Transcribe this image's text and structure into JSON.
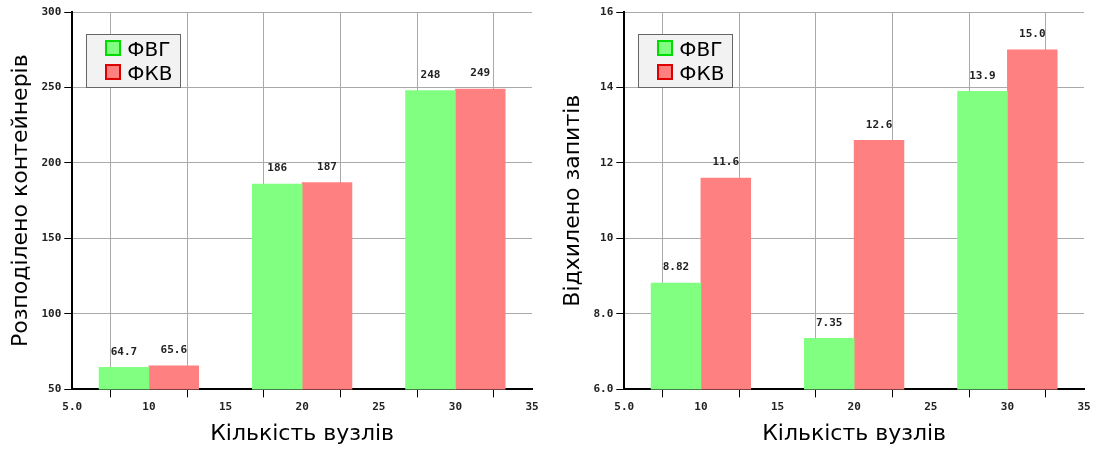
{
  "chart_data": [
    {
      "type": "bar",
      "xlabel": "Кількість вузлів",
      "ylabel": "Розподілено контейнерів",
      "x": [
        10,
        20,
        30
      ],
      "series": [
        {
          "name": "ФВГ",
          "color": "#80ff80",
          "values": [
            64.7,
            186,
            248
          ],
          "value_labels": [
            "64.7",
            "186",
            "248"
          ]
        },
        {
          "name": "ФКВ",
          "color": "#ff8080",
          "values": [
            65.6,
            187,
            249
          ],
          "value_labels": [
            "65.6",
            "187",
            "249"
          ]
        }
      ],
      "xlim": [
        5,
        35
      ],
      "xticks": [
        {
          "value": 5,
          "label": "5.0"
        },
        10,
        15,
        20,
        25,
        30,
        35
      ],
      "ylim": [
        50,
        300
      ],
      "yticks": [
        50,
        100,
        150,
        200,
        250,
        300
      ],
      "grid": true,
      "legend": "top left"
    },
    {
      "type": "bar",
      "xlabel": "Кількість вузлів",
      "ylabel": "Відхилено запитів",
      "x": [
        10,
        20,
        30
      ],
      "series": [
        {
          "name": "ФВГ",
          "color": "#80ff80",
          "values": [
            8.82,
            7.35,
            13.9
          ],
          "value_labels": [
            "8.82",
            "7.35",
            "13.9"
          ]
        },
        {
          "name": "ФКВ",
          "color": "#ff8080",
          "values": [
            11.6,
            12.6,
            15
          ],
          "value_labels": [
            "11.6",
            "12.6",
            "15.0"
          ]
        }
      ],
      "xlim": [
        5,
        35
      ],
      "xticks": [
        {
          "value": 5,
          "label": "5.0"
        },
        10,
        15,
        20,
        25,
        30,
        35
      ],
      "ylim": [
        6,
        16
      ],
      "yticks": [
        {
          "value": 6,
          "label": "6.0"
        },
        {
          "value": 8,
          "label": "8.0"
        },
        10,
        12,
        14,
        16
      ],
      "grid": true,
      "legend": "top left"
    }
  ]
}
